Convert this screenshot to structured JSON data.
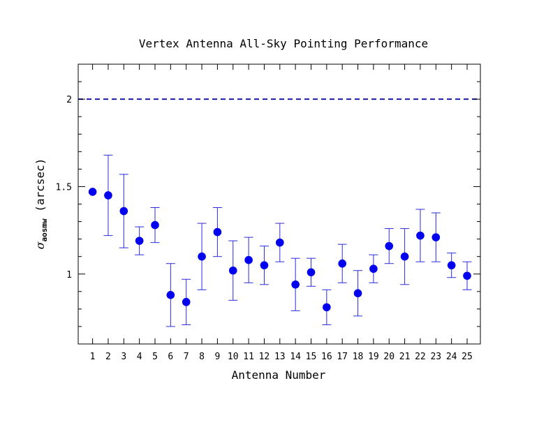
{
  "chart_data": {
    "type": "scatter",
    "title": "Vertex Antenna All-Sky Pointing Performance",
    "xlabel": "Antenna Number",
    "ylabel": {
      "symbol": "σ",
      "subscript": "aosmw",
      "unit": "(arcsec)"
    },
    "ylim": [
      0.6,
      2.2
    ],
    "y_ticks": [
      1,
      1.5,
      2
    ],
    "y_tick_labels": [
      "1",
      "1.5",
      "2"
    ],
    "x": [
      1,
      2,
      3,
      4,
      5,
      6,
      7,
      8,
      9,
      10,
      11,
      12,
      13,
      14,
      15,
      16,
      17,
      18,
      19,
      20,
      21,
      22,
      23,
      24,
      25
    ],
    "x_tick_labels": [
      "1",
      "2",
      "3",
      "4",
      "5",
      "6",
      "7",
      "8",
      "9",
      "10",
      "11",
      "12",
      "13",
      "14",
      "15",
      "16",
      "17",
      "18",
      "19",
      "20",
      "21",
      "22",
      "23",
      "24",
      "25"
    ],
    "y": [
      1.47,
      1.45,
      1.36,
      1.19,
      1.28,
      0.88,
      0.84,
      1.1,
      1.24,
      1.02,
      1.08,
      1.05,
      1.18,
      0.94,
      1.01,
      0.81,
      1.06,
      0.89,
      1.03,
      1.16,
      1.1,
      1.22,
      1.21,
      1.05,
      0.99
    ],
    "y_low": [
      1.47,
      1.22,
      1.15,
      1.11,
      1.18,
      0.7,
      0.71,
      0.91,
      1.1,
      0.85,
      0.95,
      0.94,
      1.07,
      0.79,
      0.93,
      0.71,
      0.95,
      0.76,
      0.95,
      1.06,
      0.94,
      1.07,
      1.07,
      0.98,
      0.91
    ],
    "y_high": [
      1.47,
      1.68,
      1.57,
      1.27,
      1.38,
      1.06,
      0.97,
      1.29,
      1.38,
      1.19,
      1.21,
      1.16,
      1.29,
      1.09,
      1.09,
      0.91,
      1.17,
      1.02,
      1.11,
      1.26,
      1.26,
      1.37,
      1.35,
      1.12,
      1.07
    ],
    "reference_line": {
      "y": 2,
      "style": "dashed"
    },
    "grid": false,
    "colors": {
      "points": "#0000ee",
      "errorbars": "#2a2ae0",
      "reference_line": "#1a1aaa",
      "axes": "#000000"
    }
  }
}
